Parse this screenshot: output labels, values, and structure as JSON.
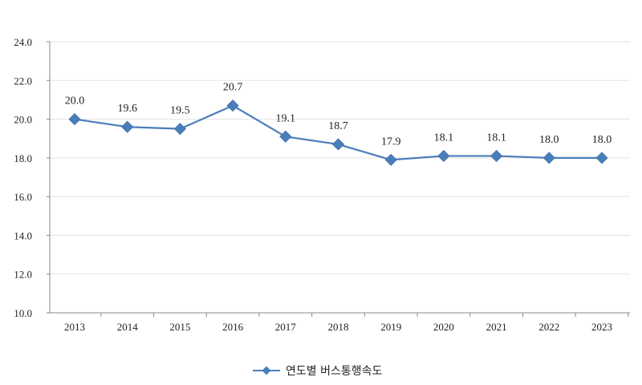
{
  "chart_data": {
    "type": "line",
    "title": "",
    "xlabel": "",
    "ylabel": "",
    "categories": [
      "2013",
      "2014",
      "2015",
      "2016",
      "2017",
      "2018",
      "2019",
      "2020",
      "2021",
      "2022",
      "2023"
    ],
    "series": [
      {
        "name": "연도별 버스통행속도",
        "values": [
          20.0,
          19.6,
          19.5,
          20.7,
          19.1,
          18.7,
          17.9,
          18.1,
          18.1,
          18.0,
          18.0
        ],
        "data_labels": [
          "20.0",
          "19.6",
          "19.5",
          "20.7",
          "19.1",
          "18.7",
          "17.9",
          "18.1",
          "18.1",
          "18.0",
          "18.0"
        ],
        "color": "#4a7ebb",
        "marker": "diamond"
      }
    ],
    "ylim": [
      10.0,
      24.0
    ],
    "yticks": [
      "10.0",
      "12.0",
      "14.0",
      "16.0",
      "18.0",
      "20.0",
      "22.0",
      "24.0"
    ],
    "grid": true,
    "legend_position": "bottom"
  }
}
